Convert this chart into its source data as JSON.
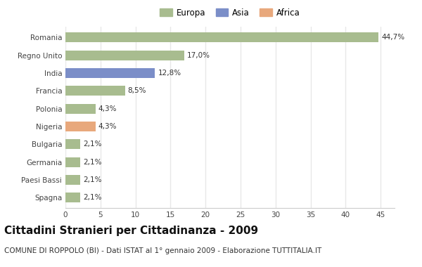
{
  "categories": [
    "Romania",
    "Regno Unito",
    "India",
    "Francia",
    "Polonia",
    "Nigeria",
    "Bulgaria",
    "Germania",
    "Paesi Bassi",
    "Spagna"
  ],
  "values": [
    44.7,
    17.0,
    12.8,
    8.5,
    4.3,
    4.3,
    2.1,
    2.1,
    2.1,
    2.1
  ],
  "labels": [
    "44,7%",
    "17,0%",
    "12,8%",
    "8,5%",
    "4,3%",
    "4,3%",
    "2,1%",
    "2,1%",
    "2,1%",
    "2,1%"
  ],
  "bar_colors": [
    "#a8bc8f",
    "#a8bc8f",
    "#7b8ec8",
    "#a8bc8f",
    "#a8bc8f",
    "#e8a87c",
    "#a8bc8f",
    "#a8bc8f",
    "#a8bc8f",
    "#a8bc8f"
  ],
  "legend_labels": [
    "Europa",
    "Asia",
    "Africa"
  ],
  "legend_colors": [
    "#a8bc8f",
    "#7b8ec8",
    "#e8a87c"
  ],
  "title": "Cittadini Stranieri per Cittadinanza - 2009",
  "subtitle": "COMUNE DI ROPPOLO (BI) - Dati ISTAT al 1° gennaio 2009 - Elaborazione TUTTITALIA.IT",
  "xlim": [
    0,
    47
  ],
  "xticks": [
    0,
    5,
    10,
    15,
    20,
    25,
    30,
    35,
    40,
    45
  ],
  "background_color": "#ffffff",
  "grid_color": "#e8e8e8",
  "bar_height": 0.55,
  "title_fontsize": 11,
  "subtitle_fontsize": 7.5,
  "label_fontsize": 7.5,
  "tick_fontsize": 7.5,
  "legend_fontsize": 8.5
}
